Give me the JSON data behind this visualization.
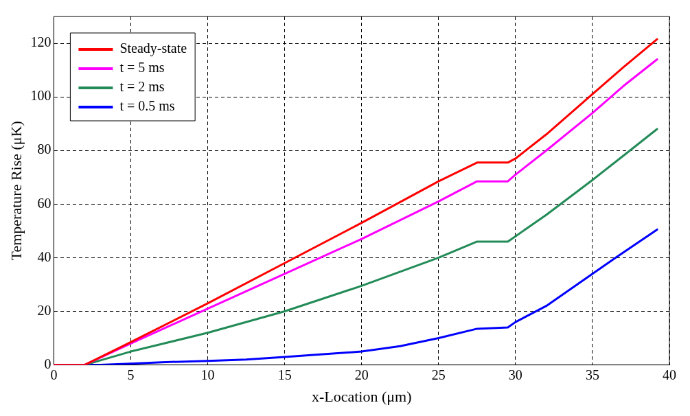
{
  "chart_data": {
    "type": "line",
    "xlabel": "x-Location (μm)",
    "ylabel": "Temperature Rise (μK)",
    "xlim": [
      0,
      40
    ],
    "xticks": [
      0,
      5,
      10,
      15,
      20,
      25,
      30,
      35,
      40
    ],
    "ylim": [
      0,
      130
    ],
    "yticks": [
      0,
      20,
      40,
      60,
      80,
      100,
      120
    ],
    "grid": true,
    "legend": "top left",
    "line_style": "solid",
    "marker": "none",
    "series": [
      {
        "name": "Steady-state",
        "color": "#ff0000",
        "x": [
          0,
          2,
          5,
          10,
          15,
          20,
          25,
          27.5,
          29.5,
          30,
          32,
          35,
          37,
          39.2
        ],
        "values": [
          0,
          0,
          8.5,
          23,
          38,
          53,
          68.5,
          75.5,
          75.5,
          77,
          86,
          101,
          111,
          121.5
        ]
      },
      {
        "name": "t = 5 ms",
        "color": "#ff00ff",
        "x": [
          0,
          2,
          5,
          10,
          15,
          20,
          25,
          27.5,
          29.5,
          30,
          32,
          35,
          37,
          39.2
        ],
        "values": [
          0,
          0,
          8,
          21,
          34,
          47,
          61,
          68.5,
          68.5,
          71,
          80,
          94,
          104,
          114
        ]
      },
      {
        "name": "t = 2 ms",
        "color": "#228b57",
        "x": [
          0,
          2,
          5,
          10,
          15,
          20,
          25,
          27.5,
          29.5,
          30,
          32,
          35,
          37,
          39.2
        ],
        "values": [
          0,
          0,
          5,
          12,
          20,
          29.5,
          40,
          46,
          46,
          48,
          56,
          69,
          78,
          88
        ]
      },
      {
        "name": "t = 0.5 ms",
        "color": "#0000ff",
        "x": [
          0,
          3,
          5,
          7,
          10,
          12.5,
          15,
          17.5,
          20,
          22.5,
          25,
          27.5,
          29.5,
          30,
          32,
          34,
          36.5,
          39.2
        ],
        "values": [
          0,
          0,
          0.5,
          1,
          1.5,
          2,
          3,
          4,
          5,
          7,
          10,
          13.5,
          14,
          16,
          22,
          30,
          40,
          50.5
        ]
      }
    ]
  }
}
